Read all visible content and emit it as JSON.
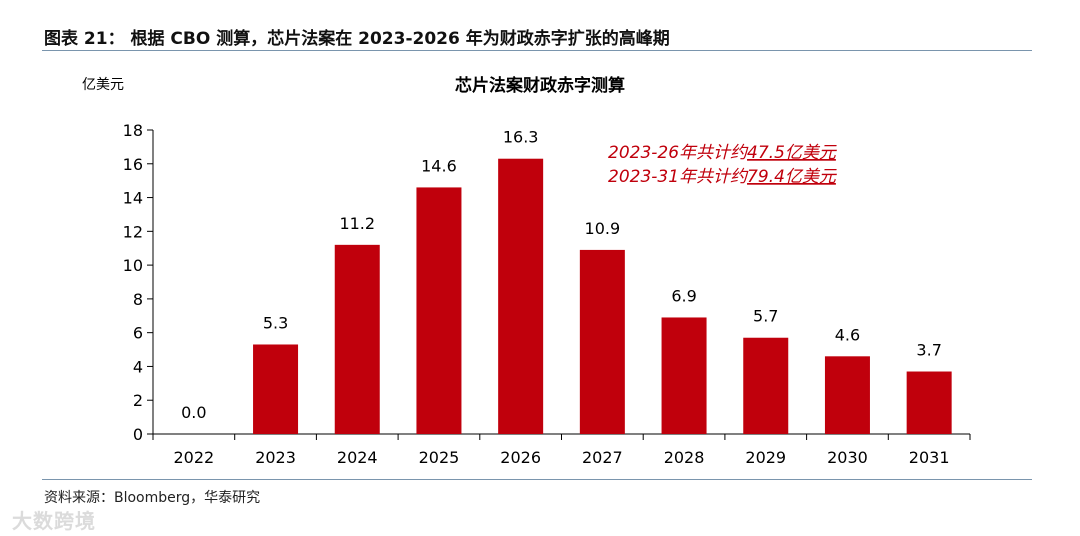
{
  "header": {
    "figure_title": "图表 21：  根据 CBO 测算，芯片法案在 2023-2026 年为财政赤字扩张的高峰期"
  },
  "source": "资料来源：Bloomberg，华泰研究",
  "watermark": "大数跨境",
  "colors": {
    "bar": "#c0000c",
    "annotation": "#c0000c",
    "rule": "#7a95ad"
  },
  "chart_data": {
    "type": "bar",
    "title": "芯片法案财政赤字测算",
    "ylabel": "亿美元",
    "xlabel": "",
    "categories": [
      "2022",
      "2023",
      "2024",
      "2025",
      "2026",
      "2027",
      "2028",
      "2029",
      "2030",
      "2031"
    ],
    "values": [
      0.0,
      5.3,
      11.2,
      14.6,
      16.3,
      10.9,
      6.9,
      5.7,
      4.6,
      3.7
    ],
    "data_labels": [
      "0.0",
      "5.3",
      "11.2",
      "14.6",
      "16.3",
      "10.9",
      "6.9",
      "5.7",
      "4.6",
      "3.7"
    ],
    "ylim": [
      0,
      18
    ],
    "yticks": [
      0,
      2,
      4,
      6,
      8,
      10,
      12,
      14,
      16,
      18
    ],
    "grid": false,
    "annotations": [
      {
        "prefix": "2023-26年共计约",
        "value": "47.5亿美元"
      },
      {
        "prefix": "2023-31年共计约",
        "value": "79.4亿美元"
      }
    ]
  }
}
